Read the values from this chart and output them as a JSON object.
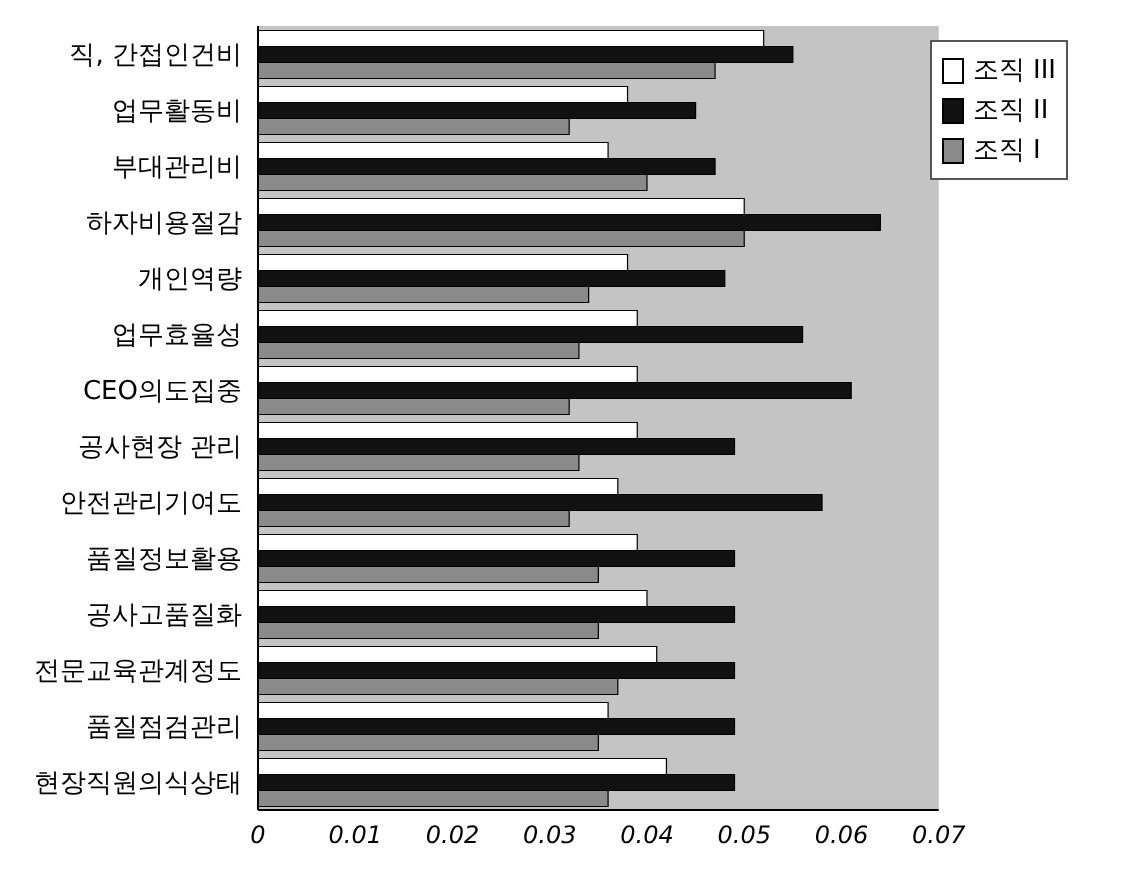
{
  "chart_data": {
    "type": "bar",
    "orientation": "horizontal",
    "categories": [
      "직, 간접인건비",
      "업무활동비",
      "부대관리비",
      "하자비용절감",
      "개인역량",
      "업무효율성",
      "CEO의도집중",
      "공사현장 관리",
      "안전관리기여도",
      "품질정보활용",
      "공사고품질화",
      "전문교육관계정도",
      "품질점검관리",
      "현장직원의식상태"
    ],
    "series": [
      {
        "name": "조직 III",
        "color": "#ffffff",
        "values": [
          0.052,
          0.038,
          0.036,
          0.05,
          0.038,
          0.039,
          0.039,
          0.039,
          0.037,
          0.039,
          0.04,
          0.041,
          0.036,
          0.042
        ]
      },
      {
        "name": "조직 II",
        "color": "#111111",
        "values": [
          0.055,
          0.045,
          0.047,
          0.064,
          0.048,
          0.056,
          0.061,
          0.049,
          0.058,
          0.049,
          0.049,
          0.049,
          0.049,
          0.049
        ]
      },
      {
        "name": "조직 I",
        "color": "#8a8a8a",
        "values": [
          0.047,
          0.032,
          0.04,
          0.05,
          0.034,
          0.033,
          0.032,
          0.033,
          0.032,
          0.035,
          0.035,
          0.037,
          0.035,
          0.036
        ]
      }
    ],
    "xlim": [
      0,
      0.07
    ],
    "xticks": [
      0,
      0.01,
      0.02,
      0.03,
      0.04,
      0.05,
      0.06,
      0.07
    ],
    "grid": false,
    "legend": "top right"
  }
}
